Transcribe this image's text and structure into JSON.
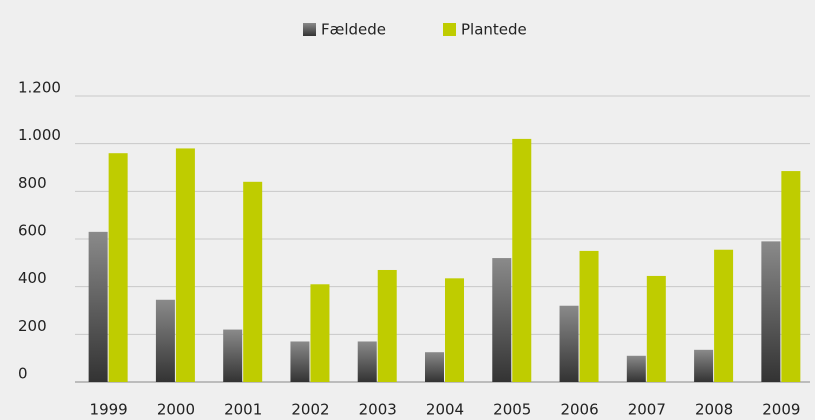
{
  "chart_data": {
    "type": "bar",
    "categories": [
      "1999",
      "2000",
      "2001",
      "2002",
      "2003",
      "2004",
      "2005",
      "2006",
      "2007",
      "2008",
      "2009"
    ],
    "series": [
      {
        "name": "Fældede",
        "color": "#8a8a8a",
        "values": [
          630,
          345,
          220,
          170,
          170,
          125,
          520,
          320,
          110,
          135,
          590
        ]
      },
      {
        "name": "Plantede",
        "color": "#bfcc00",
        "values": [
          960,
          980,
          840,
          410,
          470,
          435,
          1020,
          550,
          445,
          555,
          885
        ]
      }
    ],
    "ylim": [
      0,
      1200
    ],
    "yticks": [
      0,
      200,
      400,
      600,
      800,
      {
        "value": 1000,
        "label": "1.000"
      },
      {
        "value": 1200,
        "label": "1.200"
      }
    ],
    "grid": true,
    "legend": "top"
  }
}
